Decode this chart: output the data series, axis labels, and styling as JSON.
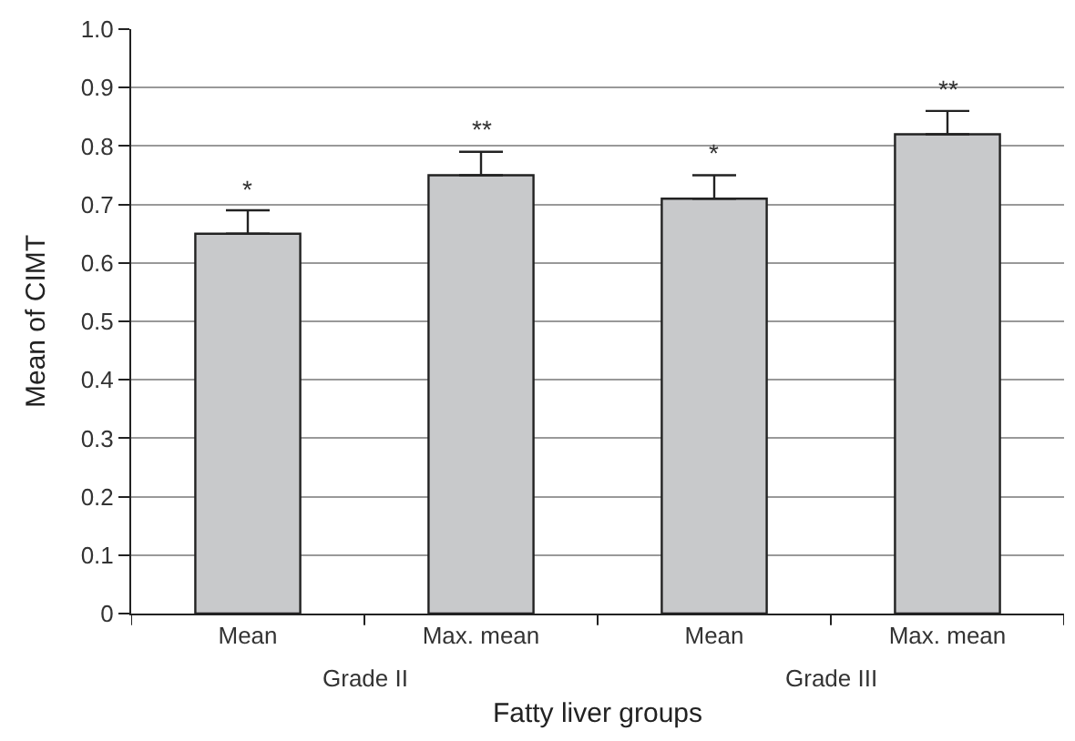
{
  "chart_data": {
    "type": "bar",
    "xlabel": "Fatty liver groups",
    "ylabel": "Mean of CIMT",
    "categories": [
      "Mean",
      "Max. mean",
      "Mean",
      "Max. mean"
    ],
    "values": [
      0.65,
      0.75,
      0.71,
      0.82
    ],
    "errors": [
      [
        0.65,
        0.69
      ],
      [
        0.75,
        0.79
      ],
      [
        0.71,
        0.75
      ],
      [
        0.82,
        0.86
      ]
    ],
    "value_labels": [
      "*",
      "**",
      "*",
      "**"
    ],
    "color": "#c8c9cb",
    "annotations": [
      "Grade II",
      "Grade III"
    ],
    "ylim": [
      0,
      1.0
    ],
    "yticks": [
      0,
      0.1,
      0.2,
      0.3,
      0.4,
      0.5,
      0.6,
      0.7,
      0.8,
      0.9,
      {
        "value": 1.0,
        "label": "1.0"
      }
    ],
    "grid": "y",
    "legend": false
  }
}
